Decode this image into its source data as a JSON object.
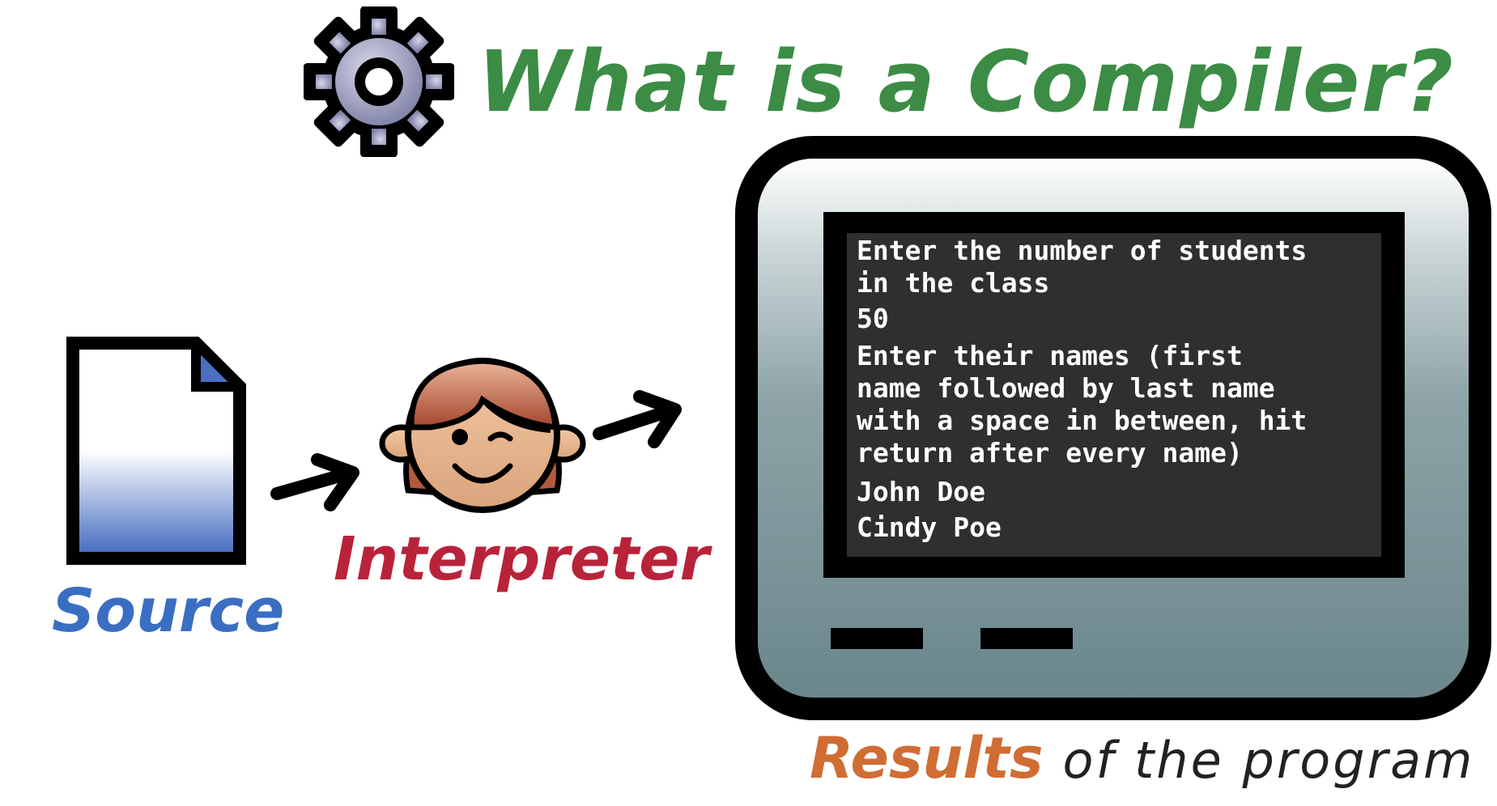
{
  "title": "What is a Compiler?",
  "labels": {
    "source": "Source",
    "interpreter": "Interpreter",
    "results_highlight": "Results",
    "results_rest": "of the program"
  },
  "terminal": {
    "prompt1": [
      "Enter the number of students",
      "in the class"
    ],
    "input1": "50",
    "prompt2": [
      "Enter their names (first",
      "name followed by last name",
      "with a space in between, hit",
      "return after every name)"
    ],
    "names": [
      "John Doe",
      "Cindy Poe"
    ]
  },
  "icons": {
    "gear": "gear-icon",
    "document": "document-icon",
    "face": "interpreter-face-icon",
    "arrows": "arrow-icon",
    "monitor": "monitor-icon"
  },
  "colors": {
    "title": "#3c8c45",
    "source": "#3a6ec2",
    "interpreter": "#b8233a",
    "results": "#cf6d33",
    "terminal_bg": "#2f2f2f",
    "gear_fill": "#9a9bbd"
  }
}
